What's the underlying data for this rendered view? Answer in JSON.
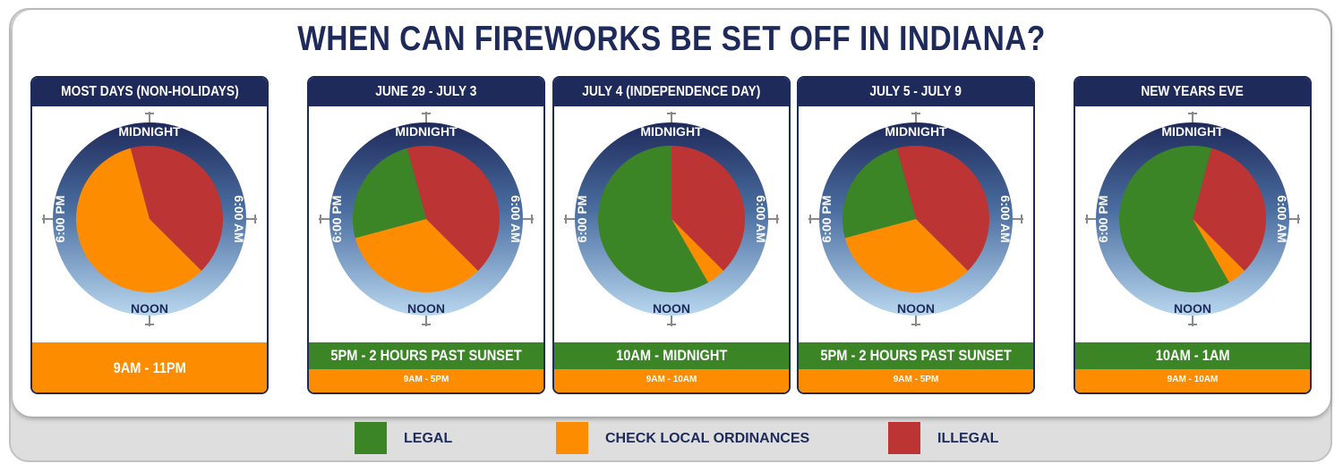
{
  "title": "WHEN CAN FIREWORKS BE SET OFF IN INDIANA?",
  "colors": {
    "legal": "#3b8527",
    "check": "#fd8c00",
    "illegal": "#bc3434",
    "navy": "#1e2a5a"
  },
  "clock_labels": {
    "top": "MIDNIGHT",
    "right": "6:00 AM",
    "bottom": "NOON",
    "left": "6:00 PM"
  },
  "legend": [
    {
      "label": "LEGAL",
      "color": "#3b8527"
    },
    {
      "label": "CHECK LOCAL ORDINANCES",
      "color": "#fd8c00"
    },
    {
      "label": "ILLEGAL",
      "color": "#bc3434"
    }
  ],
  "chart_data": [
    {
      "type": "pie",
      "title": "MOST DAYS (NON-HOLIDAYS)",
      "note": "9AM - 11PM",
      "segments": [
        {
          "category": "ILLEGAL",
          "start_hour": 23,
          "end_hour": 9
        },
        {
          "category": "CHECK LOCAL ORDINANCES",
          "start_hour": 9,
          "end_hour": 23
        }
      ]
    },
    {
      "type": "pie",
      "title": "JUNE 29 - JULY 3",
      "legal_hours": "5PM - 2 HOURS PAST SUNSET",
      "check_hours": "9AM - 5PM",
      "segments": [
        {
          "category": "ILLEGAL",
          "start_hour": 23,
          "end_hour": 9
        },
        {
          "category": "CHECK LOCAL ORDINANCES",
          "start_hour": 9,
          "end_hour": 17
        },
        {
          "category": "LEGAL",
          "start_hour": 17,
          "end_hour": 23
        }
      ]
    },
    {
      "type": "pie",
      "title": "JULY 4 (INDEPENDENCE DAY)",
      "legal_hours": "10AM - MIDNIGHT",
      "check_hours": "9AM - 10AM",
      "segments": [
        {
          "category": "ILLEGAL",
          "start_hour": 0,
          "end_hour": 9
        },
        {
          "category": "CHECK LOCAL ORDINANCES",
          "start_hour": 9,
          "end_hour": 10
        },
        {
          "category": "LEGAL",
          "start_hour": 10,
          "end_hour": 24
        }
      ]
    },
    {
      "type": "pie",
      "title": "JULY 5 - JULY 9",
      "legal_hours": "5PM - 2 HOURS PAST SUNSET",
      "check_hours": "9AM - 5PM",
      "segments": [
        {
          "category": "ILLEGAL",
          "start_hour": 23,
          "end_hour": 9
        },
        {
          "category": "CHECK LOCAL ORDINANCES",
          "start_hour": 9,
          "end_hour": 17
        },
        {
          "category": "LEGAL",
          "start_hour": 17,
          "end_hour": 23
        }
      ]
    },
    {
      "type": "pie",
      "title": "NEW YEARS EVE",
      "legal_hours": "10AM - 1AM",
      "check_hours": "9AM - 10AM",
      "segments": [
        {
          "category": "ILLEGAL",
          "start_hour": 1,
          "end_hour": 9
        },
        {
          "category": "CHECK LOCAL ORDINANCES",
          "start_hour": 9,
          "end_hour": 10
        },
        {
          "category": "LEGAL",
          "start_hour": 10,
          "end_hour": 25
        }
      ]
    }
  ]
}
